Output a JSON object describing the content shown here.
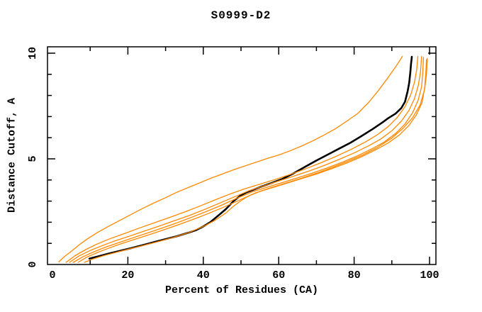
{
  "page": {
    "background": "#ffffff"
  },
  "chart_data": {
    "type": "line",
    "title": "S0999-D2",
    "xlabel": "Percent of Residues (CA)",
    "ylabel": "Distance Cutoff, A",
    "xlim": [
      0,
      100
    ],
    "ylim": [
      0,
      10
    ],
    "grid": false,
    "legend": false,
    "frame": "box-with-inward-ticks",
    "x_axis": {
      "label_values": [
        0,
        20,
        40,
        60,
        80,
        100
      ],
      "major_ticks": [
        20,
        40,
        60,
        80,
        100
      ],
      "minor_ticks": [
        10,
        30,
        50,
        70,
        90
      ]
    },
    "y_axis": {
      "label_values": [
        0,
        5,
        10
      ],
      "major_ticks": [
        5,
        10
      ],
      "minor_ticks": [
        1,
        2,
        3,
        4,
        6,
        7,
        8,
        9
      ]
    },
    "colors": {
      "model_curves": "#ff8800",
      "highlight_curve": "#000000",
      "frame": "#000000"
    },
    "series": [
      {
        "name": "black-main",
        "color": "#000000",
        "width": 2.6,
        "points": [
          [
            9.8,
            0.28
          ],
          [
            12,
            0.38
          ],
          [
            15,
            0.52
          ],
          [
            18,
            0.65
          ],
          [
            21,
            0.78
          ],
          [
            24,
            0.92
          ],
          [
            27,
            1.06
          ],
          [
            30,
            1.2
          ],
          [
            33,
            1.34
          ],
          [
            36,
            1.5
          ],
          [
            38,
            1.62
          ],
          [
            40,
            1.8
          ],
          [
            42,
            2.02
          ],
          [
            44,
            2.32
          ],
          [
            46,
            2.62
          ],
          [
            48,
            3.0
          ],
          [
            50,
            3.28
          ],
          [
            51.5,
            3.42
          ],
          [
            53,
            3.52
          ],
          [
            55,
            3.66
          ],
          [
            58,
            3.85
          ],
          [
            61,
            4.05
          ],
          [
            64,
            4.32
          ],
          [
            67,
            4.62
          ],
          [
            70,
            4.92
          ],
          [
            73,
            5.2
          ],
          [
            76,
            5.48
          ],
          [
            79,
            5.76
          ],
          [
            82,
            6.08
          ],
          [
            85,
            6.42
          ],
          [
            87.5,
            6.72
          ],
          [
            89,
            6.92
          ],
          [
            91,
            7.14
          ],
          [
            92.5,
            7.4
          ],
          [
            93.5,
            7.7
          ],
          [
            94.2,
            8.2
          ],
          [
            94.6,
            8.6
          ],
          [
            94.9,
            9.1
          ],
          [
            95.1,
            9.5
          ],
          [
            95.3,
            9.83
          ]
        ]
      },
      {
        "name": "orange-1",
        "color": "#ff8800",
        "width": 1.3,
        "points": [
          [
            1.7,
            0.12
          ],
          [
            3,
            0.35
          ],
          [
            5,
            0.62
          ],
          [
            7,
            0.92
          ],
          [
            9,
            1.18
          ],
          [
            12,
            1.52
          ],
          [
            15,
            1.82
          ],
          [
            18,
            2.1
          ],
          [
            21,
            2.38
          ],
          [
            24,
            2.66
          ],
          [
            27,
            2.92
          ],
          [
            30,
            3.16
          ],
          [
            33,
            3.42
          ],
          [
            36,
            3.64
          ],
          [
            39,
            3.86
          ],
          [
            42,
            4.08
          ],
          [
            45,
            4.28
          ],
          [
            48,
            4.48
          ],
          [
            51,
            4.66
          ],
          [
            54,
            4.84
          ],
          [
            57,
            5.02
          ],
          [
            60,
            5.18
          ],
          [
            63,
            5.38
          ],
          [
            66,
            5.6
          ],
          [
            69,
            5.85
          ],
          [
            72,
            6.12
          ],
          [
            75,
            6.42
          ],
          [
            78,
            6.78
          ],
          [
            81,
            7.15
          ],
          [
            84,
            7.7
          ],
          [
            86.5,
            8.25
          ],
          [
            89,
            8.85
          ],
          [
            91,
            9.35
          ],
          [
            92.3,
            9.7
          ],
          [
            92.8,
            9.85
          ]
        ]
      },
      {
        "name": "orange-2",
        "color": "#ff8800",
        "width": 1.3,
        "points": [
          [
            8.5,
            0.1
          ],
          [
            11,
            0.28
          ],
          [
            14,
            0.44
          ],
          [
            17,
            0.58
          ],
          [
            20,
            0.72
          ],
          [
            24,
            0.9
          ],
          [
            28,
            1.08
          ],
          [
            32,
            1.28
          ],
          [
            36,
            1.5
          ],
          [
            40,
            1.8
          ],
          [
            43,
            2.08
          ],
          [
            46,
            2.44
          ],
          [
            48,
            2.76
          ],
          [
            50,
            3.02
          ],
          [
            52,
            3.24
          ],
          [
            55,
            3.46
          ],
          [
            58,
            3.64
          ],
          [
            62,
            3.86
          ],
          [
            66,
            4.08
          ],
          [
            70,
            4.32
          ],
          [
            74,
            4.58
          ],
          [
            78,
            4.86
          ],
          [
            82,
            5.16
          ],
          [
            86,
            5.52
          ],
          [
            90,
            5.98
          ],
          [
            93,
            6.45
          ],
          [
            95.5,
            6.95
          ],
          [
            97.5,
            7.55
          ],
          [
            98.7,
            8.3
          ],
          [
            99.2,
            9.0
          ],
          [
            99.4,
            9.75
          ]
        ]
      },
      {
        "name": "orange-3",
        "color": "#ff8800",
        "width": 1.3,
        "points": [
          [
            4.5,
            0.1
          ],
          [
            7,
            0.4
          ],
          [
            10,
            0.66
          ],
          [
            13,
            0.88
          ],
          [
            16,
            1.08
          ],
          [
            20,
            1.32
          ],
          [
            24,
            1.56
          ],
          [
            28,
            1.8
          ],
          [
            32,
            2.05
          ],
          [
            36,
            2.3
          ],
          [
            40,
            2.58
          ],
          [
            44,
            2.88
          ],
          [
            48,
            3.18
          ],
          [
            52,
            3.48
          ],
          [
            56,
            3.72
          ],
          [
            60,
            3.95
          ],
          [
            64,
            4.18
          ],
          [
            68,
            4.42
          ],
          [
            72,
            4.68
          ],
          [
            76,
            4.97
          ],
          [
            80,
            5.28
          ],
          [
            84,
            5.63
          ],
          [
            87,
            5.93
          ],
          [
            90,
            6.33
          ],
          [
            92.5,
            6.78
          ],
          [
            94.5,
            7.28
          ],
          [
            96,
            7.85
          ],
          [
            97,
            8.45
          ],
          [
            97.6,
            9.1
          ],
          [
            97.9,
            9.85
          ]
        ]
      },
      {
        "name": "orange-4",
        "color": "#ff8800",
        "width": 1.3,
        "points": [
          [
            5.5,
            0.1
          ],
          [
            8,
            0.36
          ],
          [
            11,
            0.6
          ],
          [
            14,
            0.82
          ],
          [
            17,
            1.0
          ],
          [
            21,
            1.24
          ],
          [
            25,
            1.48
          ],
          [
            29,
            1.72
          ],
          [
            33,
            1.97
          ],
          [
            37,
            2.24
          ],
          [
            41,
            2.52
          ],
          [
            45,
            2.82
          ],
          [
            49,
            3.14
          ],
          [
            53,
            3.44
          ],
          [
            57,
            3.66
          ],
          [
            61,
            3.88
          ],
          [
            65,
            4.1
          ],
          [
            69,
            4.33
          ],
          [
            73,
            4.58
          ],
          [
            77,
            4.85
          ],
          [
            81,
            5.15
          ],
          [
            85,
            5.5
          ],
          [
            88,
            5.8
          ],
          [
            91,
            6.2
          ],
          [
            93.5,
            6.65
          ],
          [
            95.5,
            7.18
          ],
          [
            97,
            7.78
          ],
          [
            97.9,
            8.42
          ],
          [
            98.2,
            9.05
          ],
          [
            98.4,
            9.8
          ]
        ]
      },
      {
        "name": "orange-5",
        "color": "#ff8800",
        "width": 1.3,
        "points": [
          [
            3.6,
            0.1
          ],
          [
            6,
            0.42
          ],
          [
            9,
            0.72
          ],
          [
            12,
            0.98
          ],
          [
            15,
            1.2
          ],
          [
            19,
            1.46
          ],
          [
            23,
            1.72
          ],
          [
            27,
            1.97
          ],
          [
            31,
            2.22
          ],
          [
            35,
            2.48
          ],
          [
            39,
            2.76
          ],
          [
            43,
            3.05
          ],
          [
            47,
            3.33
          ],
          [
            51,
            3.58
          ],
          [
            55,
            3.8
          ],
          [
            59,
            4.02
          ],
          [
            63,
            4.26
          ],
          [
            67,
            4.52
          ],
          [
            71,
            4.8
          ],
          [
            75,
            5.1
          ],
          [
            79,
            5.43
          ],
          [
            83,
            5.8
          ],
          [
            86,
            6.12
          ],
          [
            89,
            6.52
          ],
          [
            91.5,
            6.97
          ],
          [
            93.5,
            7.47
          ],
          [
            95,
            8.02
          ],
          [
            96,
            8.62
          ],
          [
            96.6,
            9.22
          ],
          [
            96.9,
            9.85
          ]
        ]
      },
      {
        "name": "orange-6",
        "color": "#ff8800",
        "width": 1.3,
        "points": [
          [
            6.8,
            0.1
          ],
          [
            9,
            0.34
          ],
          [
            12,
            0.57
          ],
          [
            15,
            0.78
          ],
          [
            18,
            0.97
          ],
          [
            22,
            1.2
          ],
          [
            26,
            1.43
          ],
          [
            30,
            1.67
          ],
          [
            34,
            1.92
          ],
          [
            38,
            2.18
          ],
          [
            42,
            2.46
          ],
          [
            46,
            2.76
          ],
          [
            50,
            3.08
          ],
          [
            54,
            3.4
          ],
          [
            58,
            3.62
          ],
          [
            62,
            3.84
          ],
          [
            66,
            4.06
          ],
          [
            70,
            4.28
          ],
          [
            74,
            4.53
          ],
          [
            78,
            4.8
          ],
          [
            82,
            5.1
          ],
          [
            86,
            5.45
          ],
          [
            89,
            5.75
          ],
          [
            92,
            6.13
          ],
          [
            94.5,
            6.57
          ],
          [
            96.5,
            7.08
          ],
          [
            98,
            7.66
          ],
          [
            98.7,
            8.36
          ],
          [
            99.0,
            9.05
          ],
          [
            99.2,
            9.7
          ]
        ]
      }
    ]
  }
}
